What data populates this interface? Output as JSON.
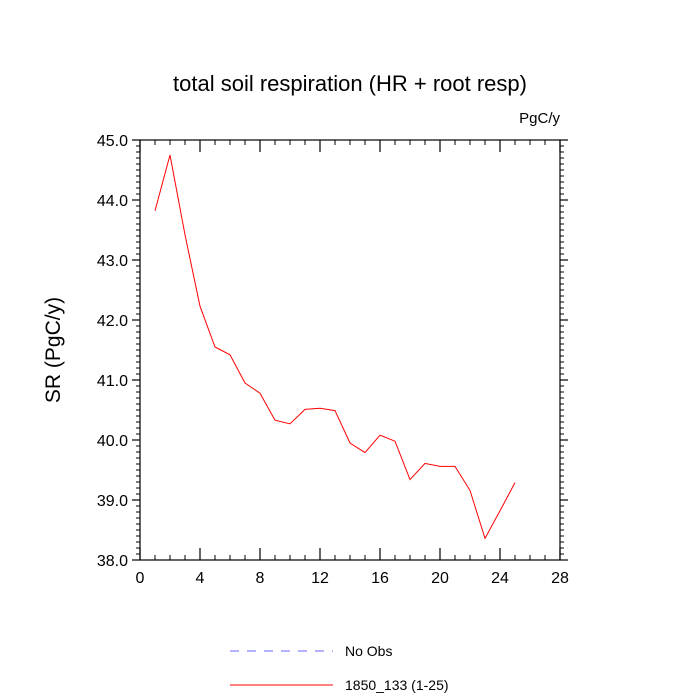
{
  "chart_data": {
    "type": "line",
    "title": "total soil respiration (HR + root resp)",
    "units_label": "PgC/y",
    "ylabel": "SR  (PgC/y)",
    "xlabel": "",
    "xlim": [
      0,
      28
    ],
    "ylim": [
      38.0,
      45.0
    ],
    "x_ticks": [
      0,
      4,
      8,
      12,
      16,
      20,
      24,
      28
    ],
    "x_tick_labels": [
      "0",
      "4",
      "8",
      "12",
      "16",
      "20",
      "24",
      "28"
    ],
    "y_ticks": [
      38.0,
      39.0,
      40.0,
      41.0,
      42.0,
      43.0,
      44.0,
      45.0
    ],
    "y_tick_labels": [
      "38.0",
      "39.0",
      "40.0",
      "41.0",
      "42.0",
      "43.0",
      "44.0",
      "45.0"
    ],
    "grid": false,
    "legend_position": "bottom",
    "series": [
      {
        "name": "1850_133 (1-25)",
        "color": "#ff0000",
        "style": "solid",
        "x": [
          1,
          2,
          3,
          4,
          5,
          6,
          7,
          8,
          9,
          10,
          11,
          12,
          13,
          14,
          15,
          16,
          17,
          18,
          19,
          20,
          21,
          22,
          23,
          24,
          25
        ],
        "values": [
          43.82,
          44.75,
          43.42,
          42.23,
          41.55,
          41.42,
          40.95,
          40.78,
          40.33,
          40.27,
          40.51,
          40.53,
          40.49,
          39.95,
          39.79,
          40.08,
          39.98,
          39.34,
          39.61,
          39.56,
          39.56,
          39.16,
          38.36,
          38.82,
          39.29
        ]
      }
    ],
    "legend": [
      {
        "label": "No Obs",
        "color": "#6666ff",
        "style": "dashed"
      },
      {
        "label": "1850_133 (1-25)",
        "color": "#ff0000",
        "style": "solid"
      }
    ]
  }
}
